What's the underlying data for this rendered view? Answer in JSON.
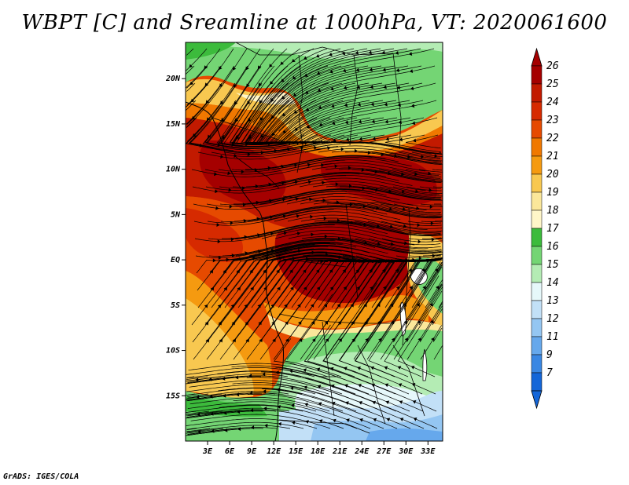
{
  "title": "WBPT [C] and Sreamline at 1000hPa, VT: 2020061600",
  "credit": "GrADS: IGES/COLA",
  "map": {
    "lat_labels": [
      "20N",
      "15N",
      "10N",
      "5N",
      "EQ",
      "5S",
      "10S",
      "15S"
    ],
    "lat_values": [
      20,
      15,
      10,
      5,
      0,
      -5,
      -10,
      -15
    ],
    "lon_labels": [
      "3E",
      "6E",
      "9E",
      "12E",
      "15E",
      "18E",
      "21E",
      "24E",
      "27E",
      "30E",
      "33E"
    ],
    "lon_values": [
      3,
      6,
      9,
      12,
      15,
      18,
      21,
      24,
      27,
      30,
      33
    ],
    "lat_range": [
      -20,
      24
    ],
    "lon_range": [
      0,
      35
    ]
  },
  "colorbar": {
    "labels": [
      "26",
      "25",
      "24",
      "23",
      "22",
      "21",
      "20",
      "19",
      "18",
      "17",
      "16",
      "15",
      "14",
      "13",
      "12",
      "11",
      "9",
      "7"
    ],
    "colors": [
      "#a50000",
      "#c21a00",
      "#d62a00",
      "#e64a00",
      "#f07800",
      "#f59a10",
      "#f8c850",
      "#fbe79a",
      "#fff6c8",
      "#3cbb3c",
      "#74d574",
      "#b4ecb4",
      "#e6f8fa",
      "#c2e0f7",
      "#94c6f2",
      "#66a8ec",
      "#3a87e3",
      "#1466d8"
    ],
    "tip_colors": {
      "top": "#a50000",
      "bottom": "#1466d8"
    }
  }
}
